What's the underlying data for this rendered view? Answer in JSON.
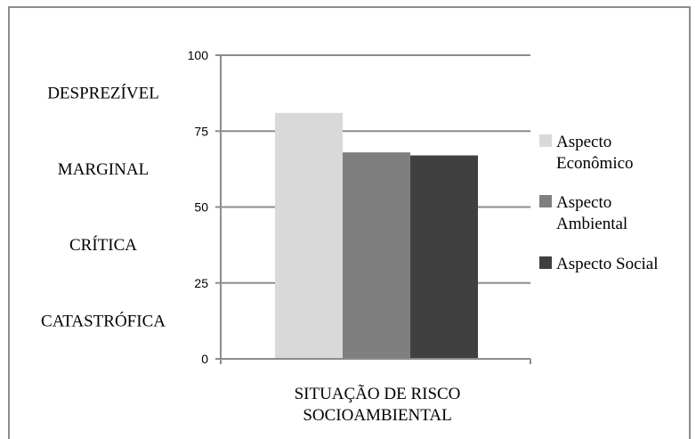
{
  "chart_data": {
    "type": "bar",
    "title": "",
    "xlabel": "",
    "ylabel": "",
    "categories": [
      "SITUAÇÃO DE RISCO SOCIOAMBIENTAL"
    ],
    "category_lines": [
      "SITUAÇÃO DE RISCO",
      "SOCIOAMBIENTAL"
    ],
    "series": [
      {
        "name": "Aspecto Econômico",
        "values": [
          81
        ],
        "color": "#d9d9d9",
        "legend_lines": [
          "Aspecto",
          "Econômico"
        ]
      },
      {
        "name": "Aspecto Ambiental",
        "values": [
          68
        ],
        "color": "#7f7f7f",
        "legend_lines": [
          "Aspecto",
          "Ambiental"
        ]
      },
      {
        "name": "Aspecto Social",
        "values": [
          67
        ],
        "color": "#404040",
        "legend_lines": [
          "Aspecto Social"
        ]
      }
    ],
    "ylim": [
      0,
      100
    ],
    "yticks": [
      0,
      25,
      50,
      75,
      100
    ],
    "grid": true,
    "legend_position": "right",
    "bands": [
      {
        "label": "DESPREZÍVEL",
        "from": 75,
        "to": 100
      },
      {
        "label": "MARGINAL",
        "from": 50,
        "to": 75
      },
      {
        "label": "CRÍTICA",
        "from": 25,
        "to": 50
      },
      {
        "label": "CATASTRÓFICA",
        "from": 0,
        "to": 25
      }
    ],
    "axis_color": "#8c8c8c"
  }
}
